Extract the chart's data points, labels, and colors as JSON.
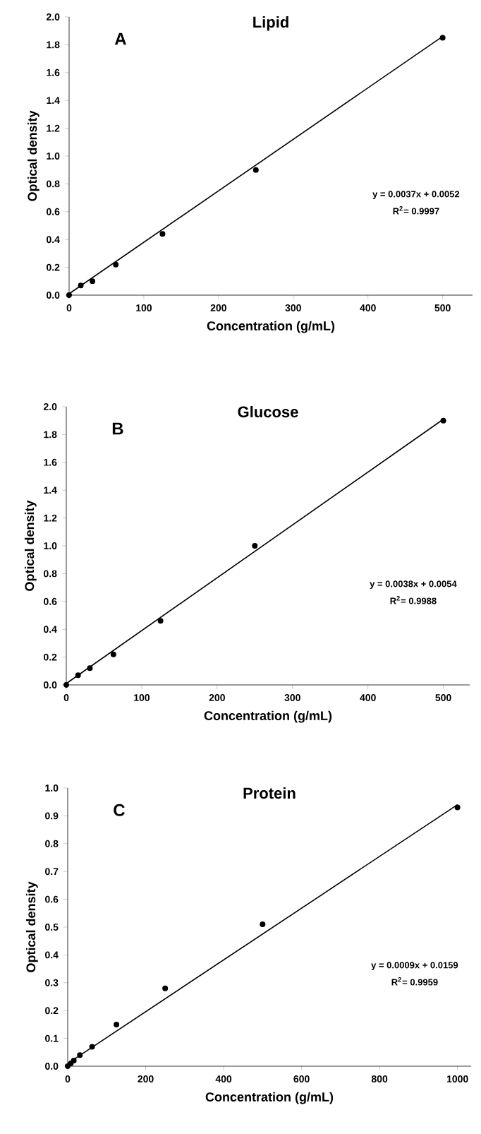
{
  "chart_data": [
    {
      "type": "scatter",
      "title": "Lipid",
      "xlabel": "Concentration (g/mL)",
      "ylabel": "Optical density",
      "annotations": [
        "A",
        "y = 0.0037x + 0.0052",
        "R$^{2}$= 0.9997"
      ],
      "series": [
        {
          "type": "scatter",
          "color": "#000000",
          "marker": "circle",
          "x": [
            0,
            15.6,
            31.25,
            62.5,
            125,
            250,
            500
          ],
          "values": [
            0,
            0.07,
            0.1,
            0.22,
            0.44,
            0.9,
            1.85
          ]
        },
        {
          "type": "line",
          "color": "#000000",
          "marker": "none",
          "x": [
            0,
            500
          ],
          "values": [
            0.01,
            1.86
          ]
        }
      ],
      "xlim": [
        0,
        540
      ],
      "xticks": [
        0,
        100,
        200,
        300,
        400,
        500
      ],
      "ylim": [
        0,
        2
      ],
      "yticks": [
        {
          "value": 0,
          "label": "0.0"
        },
        {
          "value": 0.2,
          "label": "0.2"
        },
        {
          "value": 0.4,
          "label": "0.4"
        },
        {
          "value": 0.6,
          "label": "0.6"
        },
        {
          "value": 0.8,
          "label": "0.8"
        },
        {
          "value": 1,
          "label": "1.0"
        },
        {
          "value": 1.2,
          "label": "1.2"
        },
        {
          "value": 1.4,
          "label": "1.4"
        },
        {
          "value": 1.6,
          "label": "1.6"
        },
        {
          "value": 1.8,
          "label": "1.8"
        },
        {
          "value": 2,
          "label": "2.0"
        }
      ]
    },
    {
      "type": "scatter",
      "title": "Glucose",
      "xlabel": "Concentration (g/mL)",
      "ylabel": "Optical density",
      "annotations": [
        "B",
        "y = 0.0038x + 0.0054",
        "R$^{2}$= 0.9988"
      ],
      "series": [
        {
          "type": "scatter",
          "color": "#000000",
          "marker": "circle",
          "x": [
            0,
            15.6,
            31.25,
            62.5,
            125,
            250,
            500
          ],
          "values": [
            0,
            0.07,
            0.12,
            0.22,
            0.46,
            1.0,
            1.9
          ]
        },
        {
          "type": "line",
          "color": "#000000",
          "marker": "none",
          "x": [
            0,
            500
          ],
          "values": [
            0.01,
            1.91
          ]
        }
      ],
      "xlim": [
        0,
        535
      ],
      "xticks": [
        0,
        100,
        200,
        300,
        400,
        500
      ],
      "ylim": [
        0,
        2
      ],
      "yticks": [
        {
          "value": 0,
          "label": "0.0"
        },
        {
          "value": 0.2,
          "label": "0.2"
        },
        {
          "value": 0.4,
          "label": "0.4"
        },
        {
          "value": 0.6,
          "label": "0.6"
        },
        {
          "value": 0.8,
          "label": "0.8"
        },
        {
          "value": 1,
          "label": "1.0"
        },
        {
          "value": 1.2,
          "label": "1.2"
        },
        {
          "value": 1.4,
          "label": "1.4"
        },
        {
          "value": 1.6,
          "label": "1.6"
        },
        {
          "value": 1.8,
          "label": "1.8"
        },
        {
          "value": 2,
          "label": "2.0"
        }
      ]
    },
    {
      "type": "scatter",
      "title": "Protein",
      "xlabel": "Concentration (g/mL)",
      "ylabel": "Optical density",
      "annotations": [
        "C",
        "y = 0.0009x + 0.0159",
        "R$^{2}$= 0.9959"
      ],
      "series": [
        {
          "type": "scatter",
          "color": "#000000",
          "marker": "circle",
          "x": [
            0,
            7.8,
            15.6,
            31.25,
            62.5,
            125,
            250,
            500,
            1000
          ],
          "values": [
            0,
            0.01,
            0.02,
            0.04,
            0.07,
            0.15,
            0.28,
            0.51,
            0.93
          ]
        },
        {
          "type": "line",
          "color": "#000000",
          "marker": "none",
          "x": [
            0,
            1000
          ],
          "values": [
            0.01,
            0.94
          ]
        }
      ],
      "xlim": [
        0,
        1035
      ],
      "xticks": [
        0,
        200,
        400,
        600,
        800,
        1000
      ],
      "ylim": [
        0,
        1
      ],
      "yticks": [
        {
          "value": 0,
          "label": "0.0"
        },
        {
          "value": 0.1,
          "label": "0.1"
        },
        {
          "value": 0.2,
          "label": "0.2"
        },
        {
          "value": 0.3,
          "label": "0.3"
        },
        {
          "value": 0.4,
          "label": "0.4"
        },
        {
          "value": 0.5,
          "label": "0.5"
        },
        {
          "value": 0.6,
          "label": "0.6"
        },
        {
          "value": 0.7,
          "label": "0.7"
        },
        {
          "value": 0.8,
          "label": "0.8"
        },
        {
          "value": 0.9,
          "label": "0.9"
        },
        {
          "value": 1,
          "label": "1.0"
        }
      ]
    }
  ]
}
